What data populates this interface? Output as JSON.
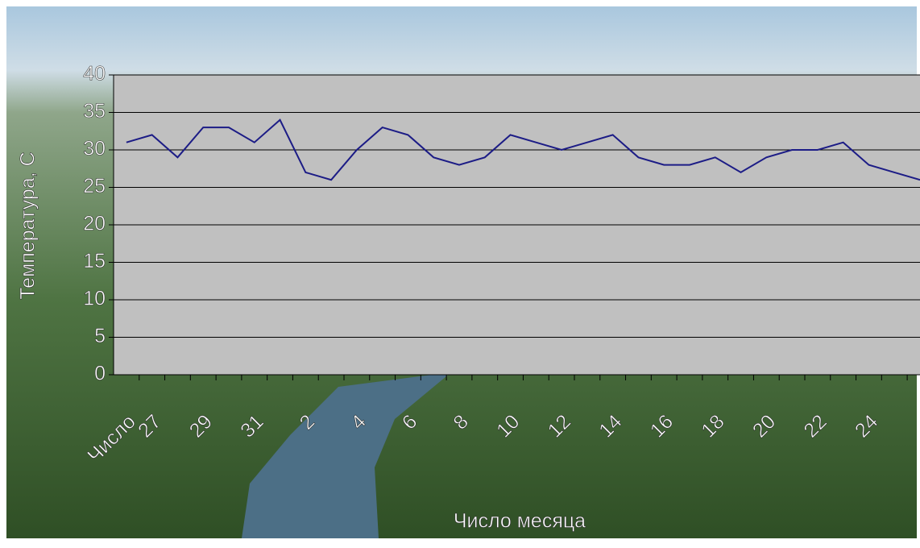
{
  "chart_data": {
    "type": "line",
    "x_label": "Число месяца",
    "y_label": "Температура, С",
    "categories": [
      "Число",
      "27",
      null,
      "29",
      null,
      "31",
      null,
      "2",
      null,
      "4",
      null,
      "6",
      null,
      "8",
      null,
      "10",
      null,
      "12",
      null,
      "14",
      null,
      "16",
      null,
      "18",
      null,
      "20",
      null,
      "22",
      null,
      "24",
      null,
      null
    ],
    "series": [
      {
        "color": "#1c1c86",
        "values": [
          31,
          32,
          29,
          33,
          33,
          31,
          34,
          27,
          26,
          30,
          33,
          32,
          29,
          28,
          29,
          32,
          31,
          30,
          31,
          32,
          29,
          28,
          28,
          29,
          27,
          29,
          30,
          30,
          31,
          28,
          27,
          26
        ]
      }
    ],
    "ylim": [
      0,
      40
    ],
    "yticks": [
      0,
      5,
      10,
      15,
      20,
      25,
      30,
      35,
      40
    ],
    "grid": true
  }
}
